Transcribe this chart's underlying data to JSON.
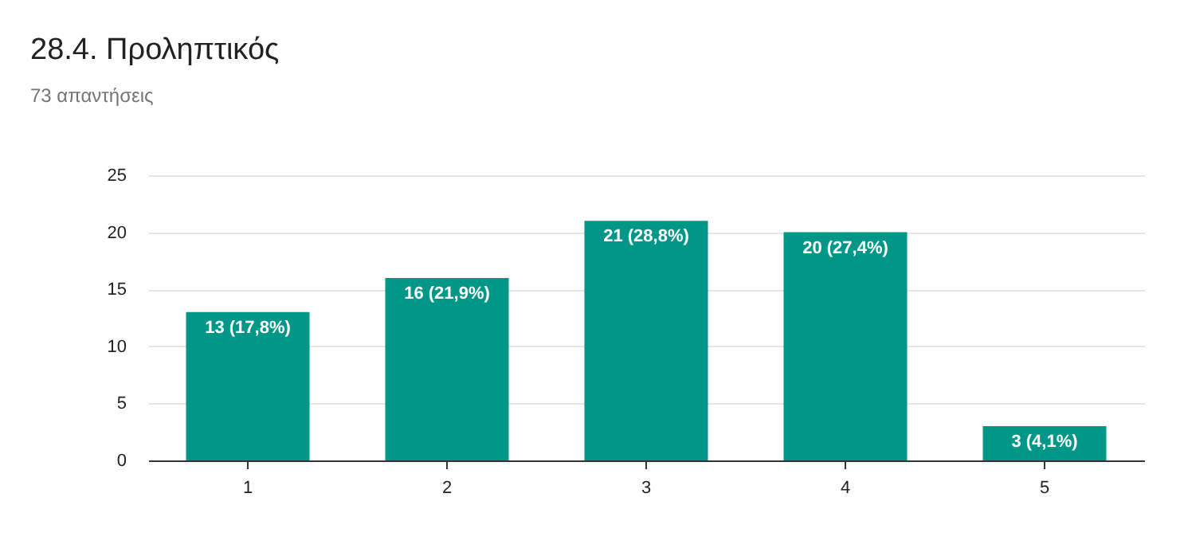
{
  "chart_data": {
    "type": "bar",
    "title": "28.4. Προληπτικός",
    "subtitle": "73 απαντήσεις",
    "categories": [
      "1",
      "2",
      "3",
      "4",
      "5"
    ],
    "values": [
      13,
      16,
      21,
      20,
      3
    ],
    "value_labels": [
      "13 (17,8%)",
      "16 (21,9%)",
      "21 (28,8%)",
      "20 (27,4%)",
      "3 (4,1%)"
    ],
    "color": "#009688",
    "ylim": [
      0,
      25
    ],
    "yticks": [
      0,
      5,
      10,
      15,
      20,
      25
    ],
    "grid": "y"
  }
}
